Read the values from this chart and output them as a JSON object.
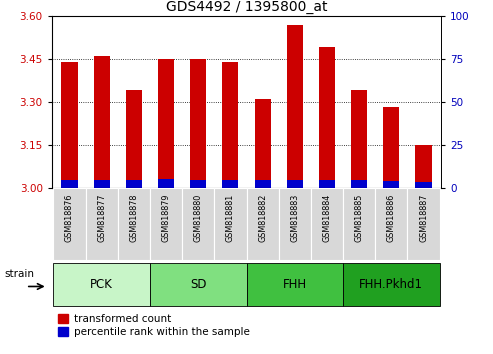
{
  "title": "GDS4492 / 1395800_at",
  "samples": [
    "GSM818876",
    "GSM818877",
    "GSM818878",
    "GSM818879",
    "GSM818880",
    "GSM818881",
    "GSM818882",
    "GSM818883",
    "GSM818884",
    "GSM818885",
    "GSM818886",
    "GSM818887"
  ],
  "red_values": [
    3.44,
    3.46,
    3.34,
    3.45,
    3.45,
    3.44,
    3.31,
    3.57,
    3.49,
    3.34,
    3.28,
    3.15
  ],
  "blue_heights": [
    0.025,
    0.028,
    0.025,
    0.03,
    0.025,
    0.025,
    0.025,
    0.028,
    0.028,
    0.025,
    0.022,
    0.02
  ],
  "ylim_left": [
    3.0,
    3.6
  ],
  "ylim_right": [
    0,
    100
  ],
  "yticks_left": [
    3.0,
    3.15,
    3.3,
    3.45,
    3.6
  ],
  "yticks_right": [
    0,
    25,
    50,
    75,
    100
  ],
  "groups": [
    {
      "label": "PCK",
      "start": 0,
      "end": 2,
      "color": "#c8f5c8"
    },
    {
      "label": "SD",
      "start": 3,
      "end": 5,
      "color": "#80e080"
    },
    {
      "label": "FHH",
      "start": 6,
      "end": 8,
      "color": "#40c040"
    },
    {
      "label": "FHH.Pkhd1",
      "start": 9,
      "end": 11,
      "color": "#20a020"
    }
  ],
  "bar_width": 0.5,
  "red_color": "#cc0000",
  "blue_color": "#0000cc",
  "bar_base": 3.0,
  "legend_red": "transformed count",
  "legend_blue": "percentile rank within the sample",
  "strain_label": "strain",
  "tick_label_color_left": "#cc0000",
  "tick_label_color_right": "#0000bb",
  "title_fontsize": 10,
  "tick_fontsize": 7.5,
  "sample_fontsize": 5.8,
  "group_label_fontsize": 8.5,
  "legend_fontsize": 7.5
}
